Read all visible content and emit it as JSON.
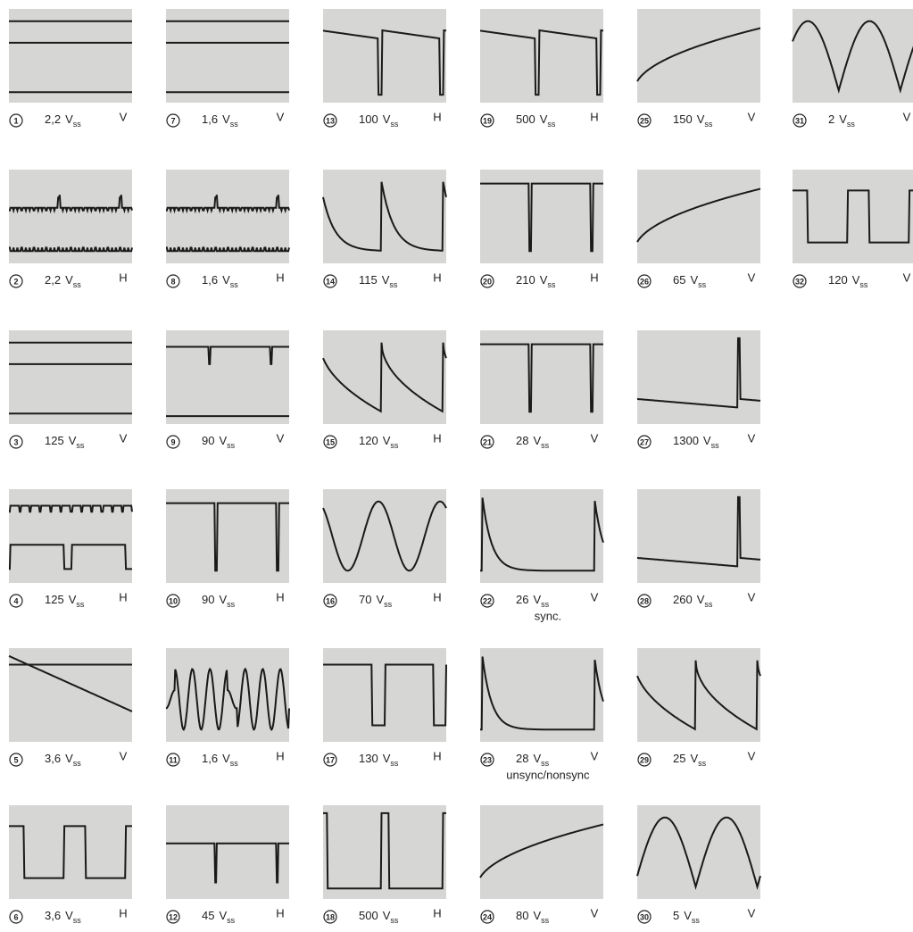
{
  "panels": [
    {
      "number": "1",
      "amplitude": "2,2",
      "unit": "V",
      "sub": "ss",
      "mode": "V"
    },
    {
      "number": "2",
      "amplitude": "2,2",
      "unit": "V",
      "sub": "ss",
      "mode": "H"
    },
    {
      "number": "3",
      "amplitude": "125",
      "unit": "V",
      "sub": "ss",
      "mode": "V"
    },
    {
      "number": "4",
      "amplitude": "125",
      "unit": "V",
      "sub": "ss",
      "mode": "H"
    },
    {
      "number": "5",
      "amplitude": "3,6",
      "unit": "V",
      "sub": "ss",
      "mode": "V"
    },
    {
      "number": "6",
      "amplitude": "3,6",
      "unit": "V",
      "sub": "ss",
      "mode": "H"
    },
    {
      "number": "7",
      "amplitude": "1,6",
      "unit": "V",
      "sub": "ss",
      "mode": "V"
    },
    {
      "number": "8",
      "amplitude": "1,6",
      "unit": "V",
      "sub": "ss",
      "mode": "H"
    },
    {
      "number": "9",
      "amplitude": "90",
      "unit": "V",
      "sub": "ss",
      "mode": "V"
    },
    {
      "number": "10",
      "amplitude": "90",
      "unit": "V",
      "sub": "ss",
      "mode": "H"
    },
    {
      "number": "11",
      "amplitude": "1,6",
      "unit": "V",
      "sub": "ss",
      "mode": "H"
    },
    {
      "number": "12",
      "amplitude": "45",
      "unit": "V",
      "sub": "ss",
      "mode": "H"
    },
    {
      "number": "13",
      "amplitude": "100",
      "unit": "V",
      "sub": "ss",
      "mode": "H"
    },
    {
      "number": "14",
      "amplitude": "115",
      "unit": "V",
      "sub": "ss",
      "mode": "H"
    },
    {
      "number": "15",
      "amplitude": "120",
      "unit": "V",
      "sub": "ss",
      "mode": "H"
    },
    {
      "number": "16",
      "amplitude": "70",
      "unit": "V",
      "sub": "ss",
      "mode": "H"
    },
    {
      "number": "17",
      "amplitude": "130",
      "unit": "V",
      "sub": "ss",
      "mode": "H"
    },
    {
      "number": "18",
      "amplitude": "500",
      "unit": "V",
      "sub": "ss",
      "mode": "H"
    },
    {
      "number": "19",
      "amplitude": "500",
      "unit": "V",
      "sub": "ss",
      "mode": "H"
    },
    {
      "number": "20",
      "amplitude": "210",
      "unit": "V",
      "sub": "ss",
      "mode": "H"
    },
    {
      "number": "21",
      "amplitude": "28",
      "unit": "V",
      "sub": "ss",
      "mode": "V"
    },
    {
      "number": "22",
      "amplitude": "26",
      "unit": "V",
      "sub": "ss",
      "mode": "V",
      "note": "sync."
    },
    {
      "number": "23",
      "amplitude": "28",
      "unit": "V",
      "sub": "ss",
      "mode": "V",
      "note": "unsync/nonsync"
    },
    {
      "number": "24",
      "amplitude": "80",
      "unit": "V",
      "sub": "ss",
      "mode": "V"
    },
    {
      "number": "25",
      "amplitude": "150",
      "unit": "V",
      "sub": "ss",
      "mode": "V"
    },
    {
      "number": "26",
      "amplitude": "65",
      "unit": "V",
      "sub": "ss",
      "mode": "V"
    },
    {
      "number": "27",
      "amplitude": "1300",
      "unit": "V",
      "sub": "ss",
      "mode": "V"
    },
    {
      "number": "28",
      "amplitude": "260",
      "unit": "V",
      "sub": "ss",
      "mode": "V"
    },
    {
      "number": "29",
      "amplitude": "25",
      "unit": "V",
      "sub": "ss",
      "mode": "V"
    },
    {
      "number": "30",
      "amplitude": "5",
      "unit": "V",
      "sub": "ss",
      "mode": "V"
    },
    {
      "number": "31",
      "amplitude": "2",
      "unit": "V",
      "sub": "ss",
      "mode": "V"
    },
    {
      "number": "32",
      "amplitude": "120",
      "unit": "V",
      "sub": "ss",
      "mode": "V"
    }
  ]
}
